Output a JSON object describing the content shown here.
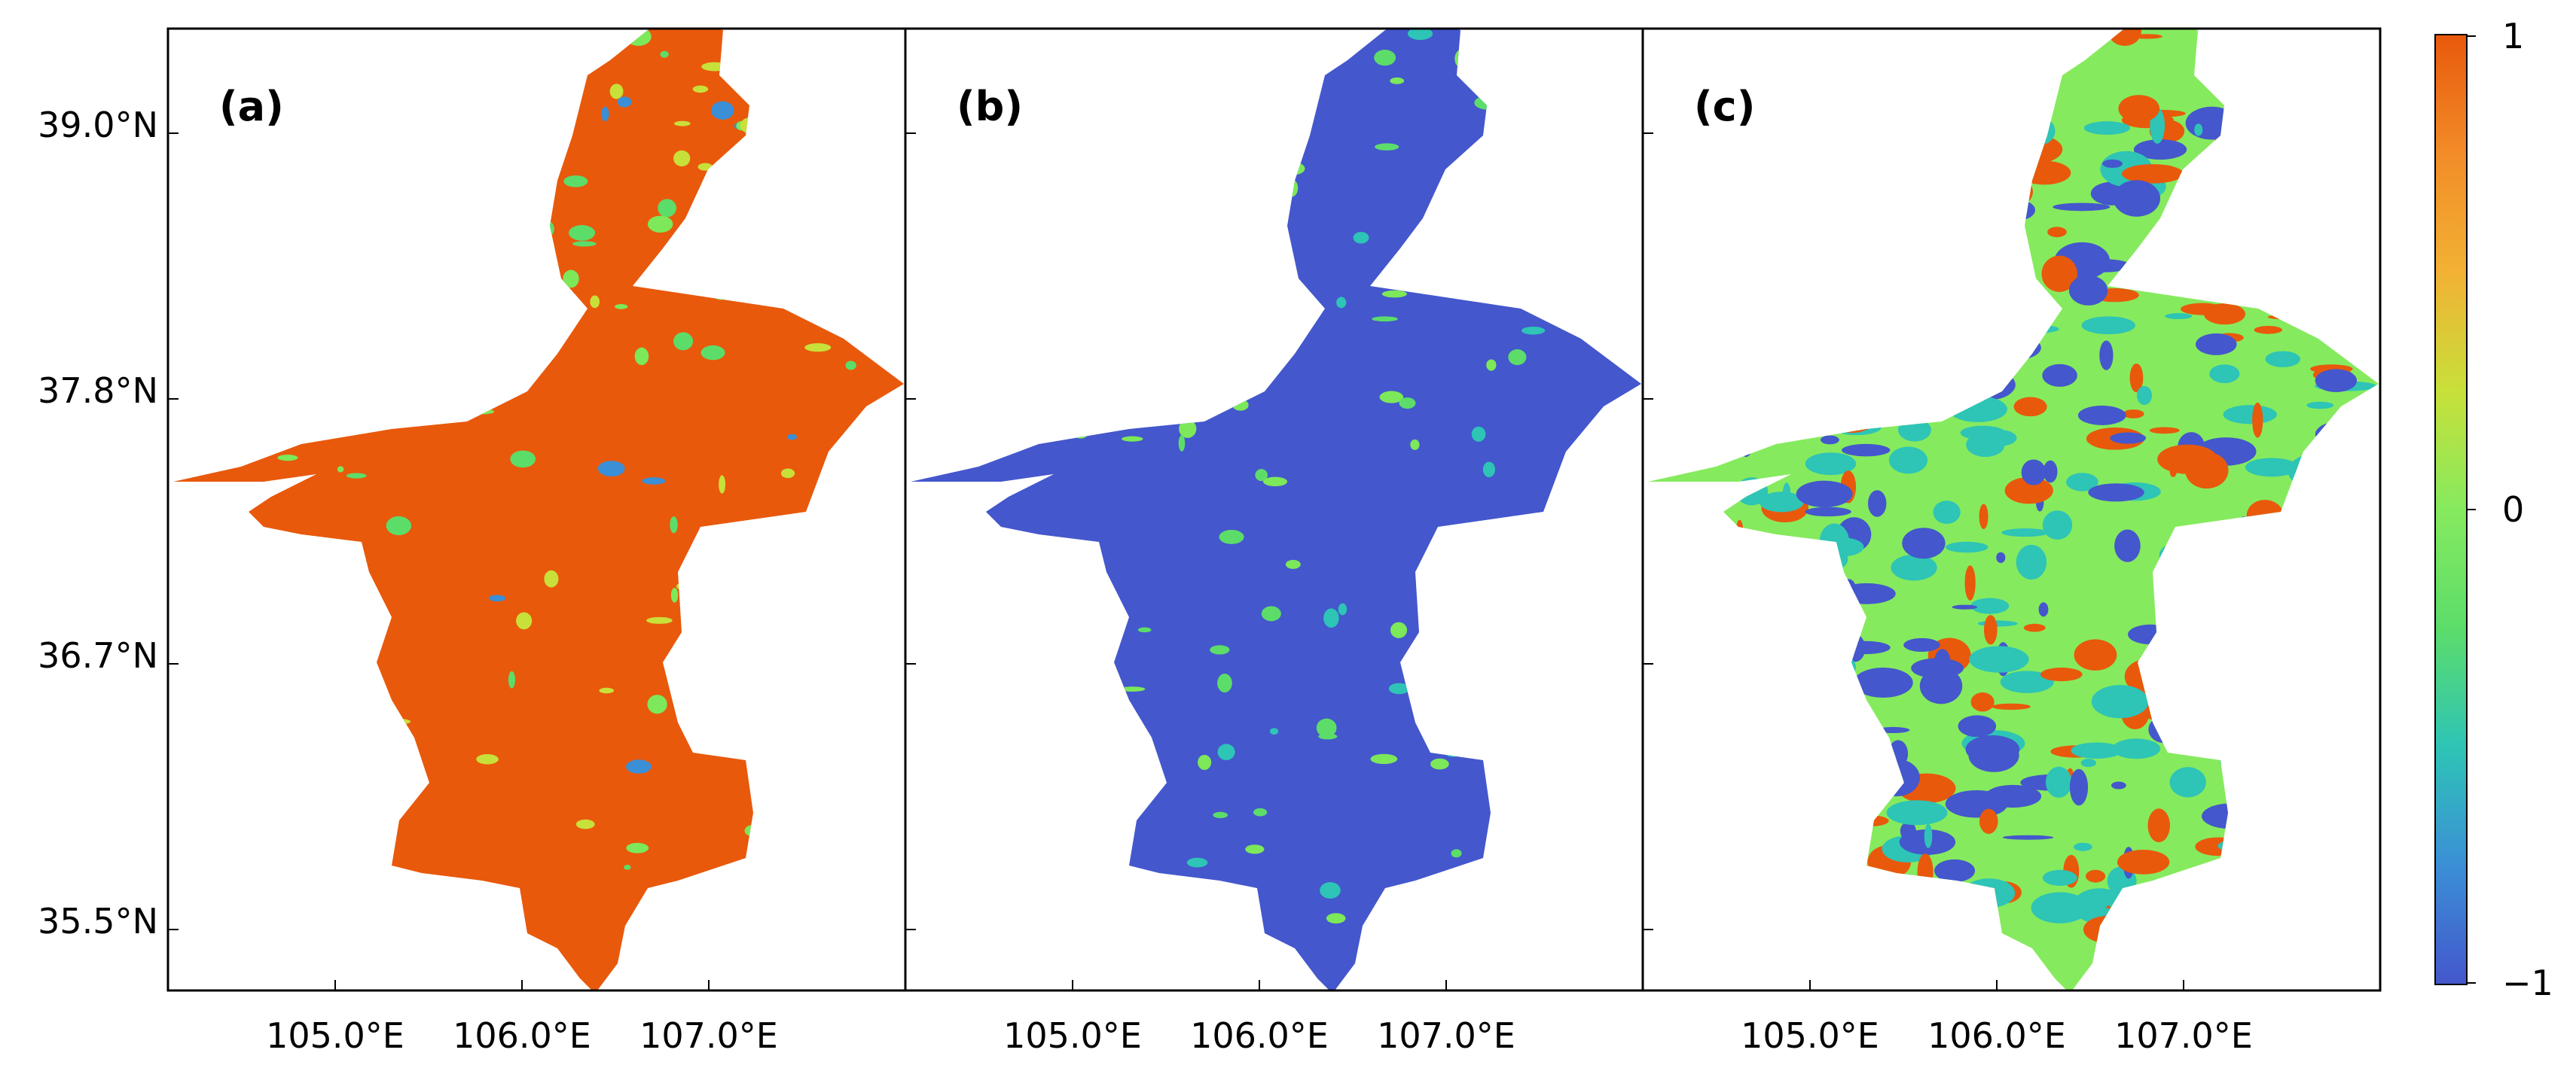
{
  "figure": {
    "panels": [
      {
        "label": "(a)",
        "base_color": "#E8590C",
        "patch_colors": [
          "#7CE85A",
          "#5CDD6A",
          "#C8E03A",
          "#3B8FD6"
        ],
        "patch_density": "low"
      },
      {
        "label": "(b)",
        "base_color": "#4457CC",
        "patch_colors": [
          "#7CE85A",
          "#5CDD6A",
          "#2EC4B6"
        ],
        "patch_density": "low"
      },
      {
        "label": "(c)",
        "base_color": "#86EA5E",
        "patch_colors": [
          "#4457CC",
          "#E8590C",
          "#2EC4B6"
        ],
        "patch_density": "high"
      }
    ],
    "lat_ticks": [
      "39.0°N",
      "37.8°N",
      "36.7°N",
      "35.5°N"
    ],
    "lon_ticks": [
      "105.0°E",
      "106.0°E",
      "107.0°E"
    ],
    "colorbar": {
      "max_label": "1",
      "mid_label": "0",
      "min_label": "−1",
      "stops": [
        "#E8590C",
        "#F28C28",
        "#F2B134",
        "#C8E03A",
        "#86EA5E",
        "#5CDD6A",
        "#2EC4B6",
        "#3B8FD6",
        "#4457CC"
      ]
    }
  }
}
